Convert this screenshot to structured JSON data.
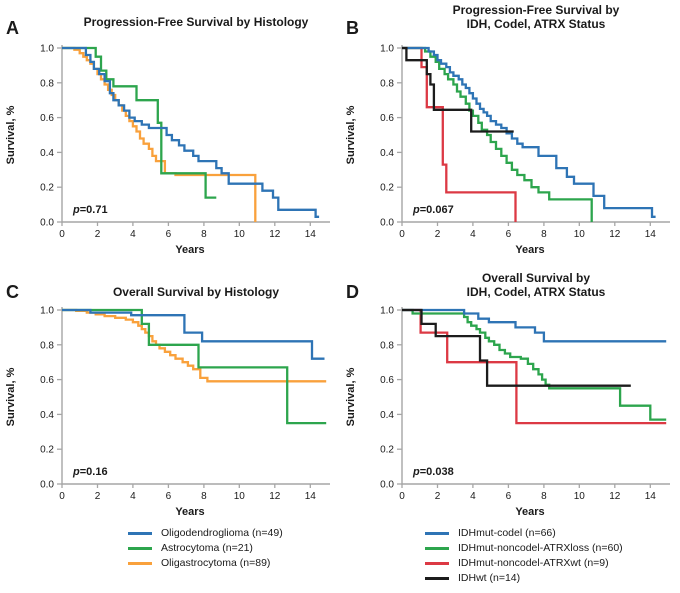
{
  "figure": {
    "background": "#FFFFFF",
    "text_color": "#1A1A1A",
    "axis_color": "#A6A6A6"
  },
  "chart_data": [
    {
      "type": "line",
      "variant": "kaplan-meier-step",
      "panel_label": "A",
      "title_lines": [
        "Progression-Free Survival by Histology"
      ],
      "xlabel": "Years",
      "ylabel": "Survival, %",
      "xlim": [
        0,
        15
      ],
      "ylim": [
        0.0,
        1.0
      ],
      "x_ticks": [
        0,
        2,
        4,
        6,
        8,
        10,
        12,
        14
      ],
      "y_ticks": [
        "0.0",
        "0.2",
        "0.4",
        "0.6",
        "0.8",
        "1.0"
      ],
      "p_value": "p=0.71",
      "series": [
        {
          "name": "Oligodendroglioma (n=49)",
          "color": "#2E74B5",
          "t_end": 14.5,
          "steps": [
            [
              0,
              1.0
            ],
            [
              1.35,
              0.96
            ],
            [
              1.6,
              0.92
            ],
            [
              1.8,
              0.88
            ],
            [
              2.1,
              0.85
            ],
            [
              2.4,
              0.81
            ],
            [
              2.7,
              0.74
            ],
            [
              2.9,
              0.7
            ],
            [
              3.2,
              0.67
            ],
            [
              3.5,
              0.64
            ],
            [
              3.8,
              0.6
            ],
            [
              4.1,
              0.58
            ],
            [
              4.5,
              0.56
            ],
            [
              4.9,
              0.54
            ],
            [
              5.9,
              0.5
            ],
            [
              6.2,
              0.47
            ],
            [
              6.6,
              0.44
            ],
            [
              6.9,
              0.41
            ],
            [
              7.4,
              0.38
            ],
            [
              7.7,
              0.35
            ],
            [
              8.7,
              0.31
            ],
            [
              9.0,
              0.28
            ],
            [
              9.4,
              0.22
            ],
            [
              11.3,
              0.18
            ],
            [
              11.9,
              0.14
            ],
            [
              12.2,
              0.07
            ],
            [
              14.3,
              0.03
            ]
          ]
        },
        {
          "name": "Astrocytoma (n=21)",
          "color": "#2DA54D",
          "t_end": 8.7,
          "steps": [
            [
              0,
              1.0
            ],
            [
              1.9,
              0.95
            ],
            [
              2.2,
              0.87
            ],
            [
              2.5,
              0.82
            ],
            [
              2.9,
              0.78
            ],
            [
              4.2,
              0.7
            ],
            [
              5.4,
              0.57
            ],
            [
              5.6,
              0.28
            ],
            [
              8.1,
              0.14
            ]
          ]
        },
        {
          "name": "Oligastrocytoma (n=89)",
          "color": "#F9A13C",
          "t_end": 10.9,
          "steps": [
            [
              0,
              1.0
            ],
            [
              0.7,
              0.99
            ],
            [
              1.0,
              0.97
            ],
            [
              1.2,
              0.95
            ],
            [
              1.4,
              0.93
            ],
            [
              1.6,
              0.91
            ],
            [
              1.8,
              0.88
            ],
            [
              2.0,
              0.85
            ],
            [
              2.2,
              0.82
            ],
            [
              2.4,
              0.79
            ],
            [
              2.6,
              0.76
            ],
            [
              2.8,
              0.73
            ],
            [
              3.0,
              0.7
            ],
            [
              3.2,
              0.67
            ],
            [
              3.4,
              0.64
            ],
            [
              3.6,
              0.61
            ],
            [
              3.8,
              0.58
            ],
            [
              4.0,
              0.55
            ],
            [
              4.2,
              0.52
            ],
            [
              4.4,
              0.48
            ],
            [
              4.6,
              0.45
            ],
            [
              4.9,
              0.42
            ],
            [
              5.1,
              0.38
            ],
            [
              5.3,
              0.35
            ],
            [
              5.8,
              0.28
            ],
            [
              6.4,
              0.27
            ],
            [
              10.9,
              0.0
            ]
          ]
        }
      ]
    },
    {
      "type": "line",
      "variant": "kaplan-meier-step",
      "panel_label": "B",
      "title_lines": [
        "Progression-Free Survival by",
        "IDH, Codel, ATRX Status"
      ],
      "xlabel": "Years",
      "ylabel": "Survival, %",
      "xlim": [
        0,
        15
      ],
      "ylim": [
        0.0,
        1.0
      ],
      "x_ticks": [
        0,
        2,
        4,
        6,
        8,
        10,
        12,
        14
      ],
      "y_ticks": [
        "0.0",
        "0.2",
        "0.4",
        "0.6",
        "0.8",
        "1.0"
      ],
      "p_value": "p=0.067",
      "series": [
        {
          "name": "IDHmut-codel (n=66)",
          "color": "#2E74B5",
          "t_end": 14.3,
          "steps": [
            [
              0,
              1.0
            ],
            [
              1.5,
              0.98
            ],
            [
              1.8,
              0.96
            ],
            [
              2.0,
              0.93
            ],
            [
              2.2,
              0.91
            ],
            [
              2.5,
              0.89
            ],
            [
              2.7,
              0.86
            ],
            [
              2.9,
              0.84
            ],
            [
              3.2,
              0.82
            ],
            [
              3.4,
              0.79
            ],
            [
              3.6,
              0.77
            ],
            [
              3.8,
              0.74
            ],
            [
              4.0,
              0.71
            ],
            [
              4.2,
              0.68
            ],
            [
              4.4,
              0.65
            ],
            [
              4.6,
              0.63
            ],
            [
              4.8,
              0.61
            ],
            [
              5.0,
              0.58
            ],
            [
              5.3,
              0.56
            ],
            [
              5.6,
              0.54
            ],
            [
              5.9,
              0.51
            ],
            [
              6.2,
              0.48
            ],
            [
              6.5,
              0.45
            ],
            [
              6.8,
              0.43
            ],
            [
              7.7,
              0.38
            ],
            [
              8.7,
              0.31
            ],
            [
              9.3,
              0.26
            ],
            [
              9.7,
              0.22
            ],
            [
              10.8,
              0.15
            ],
            [
              11.4,
              0.08
            ],
            [
              14.1,
              0.03
            ]
          ]
        },
        {
          "name": "IDHmut-noncodel-ATRXloss (n=60)",
          "color": "#2DA54D",
          "t_end": 10.7,
          "steps": [
            [
              0,
              1.0
            ],
            [
              1.3,
              0.98
            ],
            [
              1.6,
              0.95
            ],
            [
              1.9,
              0.92
            ],
            [
              2.1,
              0.88
            ],
            [
              2.4,
              0.85
            ],
            [
              2.6,
              0.82
            ],
            [
              2.9,
              0.79
            ],
            [
              3.1,
              0.75
            ],
            [
              3.3,
              0.72
            ],
            [
              3.6,
              0.68
            ],
            [
              3.8,
              0.64
            ],
            [
              4.0,
              0.61
            ],
            [
              4.3,
              0.57
            ],
            [
              4.5,
              0.53
            ],
            [
              4.8,
              0.5
            ],
            [
              5.0,
              0.46
            ],
            [
              5.3,
              0.42
            ],
            [
              5.6,
              0.38
            ],
            [
              5.9,
              0.34
            ],
            [
              6.2,
              0.3
            ],
            [
              6.5,
              0.27
            ],
            [
              6.9,
              0.24
            ],
            [
              7.3,
              0.2
            ],
            [
              7.7,
              0.17
            ],
            [
              8.3,
              0.13
            ],
            [
              10.7,
              0.0
            ]
          ]
        },
        {
          "name": "IDHmut-noncodel-ATRXwt (n=9)",
          "color": "#DC3944",
          "t_end": 6.4,
          "steps": [
            [
              0,
              1.0
            ],
            [
              1.1,
              0.89
            ],
            [
              1.4,
              0.66
            ],
            [
              2.3,
              0.33
            ],
            [
              2.5,
              0.17
            ],
            [
              6.4,
              0.0
            ]
          ]
        },
        {
          "name": "IDHwt (n=14)",
          "color": "#1C1C1C",
          "t_end": 6.3,
          "steps": [
            [
              0,
              1.0
            ],
            [
              0.25,
              0.93
            ],
            [
              1.4,
              0.85
            ],
            [
              1.6,
              0.79
            ],
            [
              1.8,
              0.645
            ],
            [
              3.9,
              0.52
            ]
          ]
        }
      ]
    },
    {
      "type": "line",
      "variant": "kaplan-meier-step",
      "panel_label": "C",
      "title_lines": [
        "Overall Survival by Histology"
      ],
      "xlabel": "Years",
      "ylabel": "Survival, %",
      "xlim": [
        0,
        15
      ],
      "ylim": [
        0.0,
        1.0
      ],
      "x_ticks": [
        0,
        2,
        4,
        6,
        8,
        10,
        12,
        14
      ],
      "y_ticks": [
        "0.0",
        "0.2",
        "0.4",
        "0.6",
        "0.8",
        "1.0"
      ],
      "p_value": "p=0.16",
      "series": [
        {
          "name": "Oligodendroglioma (n=49)",
          "color": "#2E74B5",
          "t_end": 14.8,
          "steps": [
            [
              0,
              1.0
            ],
            [
              1.6,
              0.985
            ],
            [
              3.9,
              0.97
            ],
            [
              6.9,
              0.87
            ],
            [
              7.9,
              0.82
            ],
            [
              14.1,
              0.72
            ]
          ]
        },
        {
          "name": "Astrocytoma (n=21)",
          "color": "#2DA54D",
          "t_end": 14.9,
          "steps": [
            [
              0,
              1.0
            ],
            [
              4.5,
              0.92
            ],
            [
              4.9,
              0.8
            ],
            [
              7.7,
              0.67
            ],
            [
              12.7,
              0.35
            ]
          ]
        },
        {
          "name": "Oligastrocytoma (n=89)",
          "color": "#F9A13C",
          "t_end": 14.9,
          "steps": [
            [
              0,
              1.0
            ],
            [
              0.8,
              0.995
            ],
            [
              1.4,
              0.985
            ],
            [
              1.9,
              0.975
            ],
            [
              2.4,
              0.965
            ],
            [
              3.0,
              0.955
            ],
            [
              3.6,
              0.945
            ],
            [
              4.0,
              0.93
            ],
            [
              4.3,
              0.91
            ],
            [
              4.5,
              0.89
            ],
            [
              4.7,
              0.87
            ],
            [
              4.9,
              0.85
            ],
            [
              5.1,
              0.82
            ],
            [
              5.3,
              0.8
            ],
            [
              5.5,
              0.78
            ],
            [
              5.8,
              0.76
            ],
            [
              6.1,
              0.74
            ],
            [
              6.4,
              0.72
            ],
            [
              6.8,
              0.7
            ],
            [
              7.1,
              0.68
            ],
            [
              7.4,
              0.66
            ],
            [
              7.8,
              0.61
            ],
            [
              8.2,
              0.59
            ]
          ]
        }
      ]
    },
    {
      "type": "line",
      "variant": "kaplan-meier-step",
      "panel_label": "D",
      "title_lines": [
        "Overall Survival by",
        "IDH, Codel, ATRX Status"
      ],
      "xlabel": "Years",
      "ylabel": "Survival, %",
      "xlim": [
        0,
        15
      ],
      "ylim": [
        0.0,
        1.0
      ],
      "x_ticks": [
        0,
        2,
        4,
        6,
        8,
        10,
        12,
        14
      ],
      "y_ticks": [
        "0.0",
        "0.2",
        "0.4",
        "0.6",
        "0.8",
        "1.0"
      ],
      "p_value": "p=0.038",
      "series": [
        {
          "name": "IDHmut-codel (n=66)",
          "color": "#2E74B5",
          "t_end": 14.9,
          "steps": [
            [
              0,
              1.0
            ],
            [
              3.5,
              0.98
            ],
            [
              4.3,
              0.95
            ],
            [
              4.9,
              0.93
            ],
            [
              6.4,
              0.9
            ],
            [
              7.5,
              0.87
            ],
            [
              8.0,
              0.82
            ]
          ]
        },
        {
          "name": "IDHmut-noncodel-ATRXloss (n=60)",
          "color": "#2DA54D",
          "t_end": 14.9,
          "steps": [
            [
              0,
              1.0
            ],
            [
              0.6,
              0.98
            ],
            [
              3.5,
              0.96
            ],
            [
              3.7,
              0.93
            ],
            [
              3.9,
              0.91
            ],
            [
              4.2,
              0.89
            ],
            [
              4.4,
              0.87
            ],
            [
              4.7,
              0.84
            ],
            [
              4.9,
              0.82
            ],
            [
              5.2,
              0.8
            ],
            [
              5.5,
              0.77
            ],
            [
              5.8,
              0.75
            ],
            [
              6.1,
              0.73
            ],
            [
              6.7,
              0.72
            ],
            [
              7.1,
              0.69
            ],
            [
              7.4,
              0.66
            ],
            [
              7.7,
              0.63
            ],
            [
              7.9,
              0.6
            ],
            [
              8.1,
              0.57
            ],
            [
              8.3,
              0.55
            ],
            [
              12.3,
              0.45
            ],
            [
              14.0,
              0.37
            ]
          ]
        },
        {
          "name": "IDHmut-noncodel-ATRXwt (n=9)",
          "color": "#DC3944",
          "t_end": 14.9,
          "steps": [
            [
              0,
              1.0
            ],
            [
              1.05,
              0.87
            ],
            [
              2.55,
              0.7
            ],
            [
              6.45,
              0.35
            ]
          ]
        },
        {
          "name": "IDHwt (n=14)",
          "color": "#1C1C1C",
          "t_end": 12.9,
          "steps": [
            [
              0,
              1.0
            ],
            [
              1.1,
              0.92
            ],
            [
              1.9,
              0.85
            ],
            [
              4.4,
              0.71
            ],
            [
              4.8,
              0.565
            ]
          ]
        }
      ]
    }
  ],
  "legends": {
    "left": {
      "items": [
        {
          "label": "Oligodendroglioma (n=49)",
          "color": "#2E74B5"
        },
        {
          "label": "Astrocytoma (n=21)",
          "color": "#2DA54D"
        },
        {
          "label": "Oligastrocytoma (n=89)",
          "color": "#F9A13C"
        }
      ]
    },
    "right": {
      "items": [
        {
          "label": "IDHmut-codel (n=66)",
          "color": "#2E74B5"
        },
        {
          "label": "IDHmut-noncodel-ATRXloss (n=60)",
          "color": "#2DA54D"
        },
        {
          "label": "IDHmut-noncodel-ATRXwt (n=9)",
          "color": "#DC3944"
        },
        {
          "label": "IDHwt (n=14)",
          "color": "#1C1C1C"
        }
      ]
    }
  }
}
